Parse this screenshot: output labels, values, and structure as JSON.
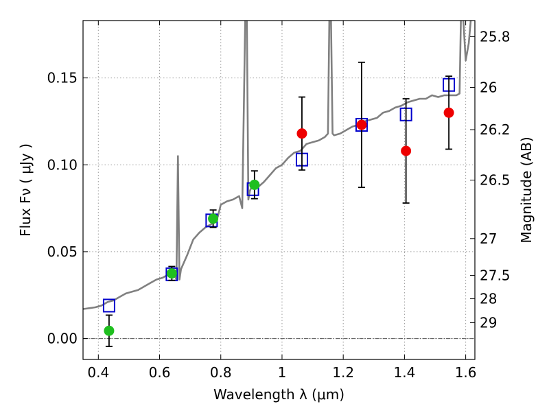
{
  "chart_data": {
    "type": "scatter",
    "xlabel": "Wavelength  λ (μm)",
    "ylabel": "Flux  Fν  ( μJy )",
    "y2label": "Magnitude (AB)",
    "xlim": [
      0.35,
      1.63
    ],
    "ylim": [
      -0.012,
      0.183
    ],
    "x_ticks": [
      0.4,
      0.6,
      0.8,
      1,
      1.2,
      1.4,
      1.6
    ],
    "x_tick_labels": [
      "0.4",
      "0.6",
      "0.8",
      "1",
      "1.2",
      "1.4",
      "1.6"
    ],
    "y_ticks": [
      0.0,
      0.05,
      0.1,
      0.15
    ],
    "y_tick_labels": [
      "0.00",
      "0.05",
      "0.10",
      "0.15"
    ],
    "y2_tick_labels": [
      "25.8",
      "26",
      "26.2",
      "26.5",
      "27",
      "27.5",
      "28",
      "29"
    ],
    "grid": true,
    "zero_line": true,
    "colors": {
      "spectrum": "#808080",
      "model_box": "#0000cc",
      "green": "#1fbf1f",
      "red": "#ee0000",
      "errorbar": "#000000",
      "grid": "#9a9a9a"
    },
    "spectrum": {
      "x": [
        0.35,
        0.37,
        0.39,
        0.41,
        0.43,
        0.45,
        0.47,
        0.49,
        0.51,
        0.53,
        0.55,
        0.57,
        0.59,
        0.61,
        0.63,
        0.65,
        0.655,
        0.66,
        0.665,
        0.67,
        0.69,
        0.71,
        0.73,
        0.75,
        0.77,
        0.79,
        0.8,
        0.82,
        0.84,
        0.86,
        0.87,
        0.88,
        0.885,
        0.89,
        0.895,
        0.9,
        0.92,
        0.94,
        0.96,
        0.98,
        1.0,
        1.02,
        1.04,
        1.06,
        1.08,
        1.1,
        1.12,
        1.14,
        1.15,
        1.155,
        1.16,
        1.165,
        1.17,
        1.19,
        1.21,
        1.23,
        1.25,
        1.27,
        1.29,
        1.31,
        1.33,
        1.35,
        1.37,
        1.39,
        1.41,
        1.43,
        1.45,
        1.47,
        1.49,
        1.51,
        1.53,
        1.55,
        1.57,
        1.58,
        1.585,
        1.59,
        1.6,
        1.61,
        1.62,
        1.63
      ],
      "y": [
        0.017,
        0.0175,
        0.018,
        0.019,
        0.021,
        0.022,
        0.024,
        0.026,
        0.027,
        0.028,
        0.03,
        0.032,
        0.034,
        0.035,
        0.037,
        0.036,
        0.034,
        0.105,
        0.034,
        0.04,
        0.048,
        0.057,
        0.061,
        0.064,
        0.066,
        0.07,
        0.077,
        0.079,
        0.08,
        0.082,
        0.075,
        0.185,
        0.185,
        0.08,
        0.085,
        0.087,
        0.087,
        0.09,
        0.094,
        0.098,
        0.1,
        0.104,
        0.107,
        0.108,
        0.112,
        0.113,
        0.114,
        0.116,
        0.118,
        0.19,
        0.185,
        0.118,
        0.117,
        0.118,
        0.12,
        0.122,
        0.123,
        0.125,
        0.126,
        0.127,
        0.13,
        0.131,
        0.133,
        0.134,
        0.136,
        0.137,
        0.138,
        0.138,
        0.14,
        0.139,
        0.14,
        0.14,
        0.14,
        0.141,
        0.19,
        0.19,
        0.16,
        0.17,
        0.19,
        0.19
      ]
    },
    "model_boxes": {
      "x": [
        0.435,
        0.64,
        0.77,
        0.905,
        1.065,
        1.26,
        1.405,
        1.545
      ],
      "y": [
        0.019,
        0.037,
        0.068,
        0.086,
        0.103,
        0.123,
        0.129,
        0.146
      ]
    },
    "observed": [
      {
        "x": 0.435,
        "y": 0.0045,
        "err": 0.009,
        "color": "green"
      },
      {
        "x": 0.64,
        "y": 0.0375,
        "err": 0.004,
        "color": "green"
      },
      {
        "x": 0.775,
        "y": 0.069,
        "err": 0.005,
        "color": "green"
      },
      {
        "x": 0.91,
        "y": 0.0885,
        "err": 0.008,
        "color": "green"
      },
      {
        "x": 1.065,
        "y": 0.118,
        "err": 0.021,
        "color": "red"
      },
      {
        "x": 1.26,
        "y": 0.123,
        "err": 0.036,
        "color": "red"
      },
      {
        "x": 1.405,
        "y": 0.108,
        "err": 0.03,
        "color": "red"
      },
      {
        "x": 1.545,
        "y": 0.13,
        "err": 0.021,
        "color": "red"
      }
    ]
  }
}
